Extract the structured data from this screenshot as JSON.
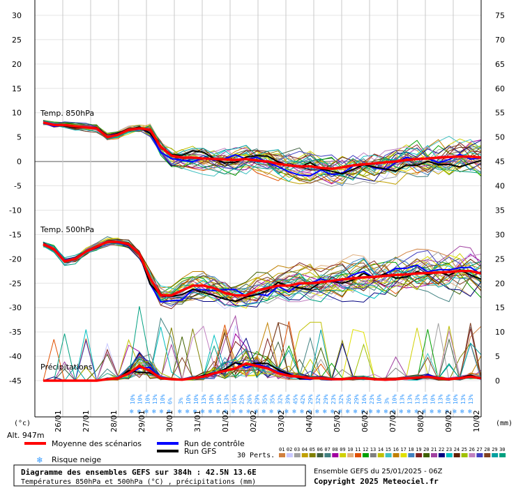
{
  "chart_data": {
    "type": "line",
    "title": "Diagramme des ensembles GEFS sur 384h : 42.5N 13.6E",
    "subtitle": "Températures 850hPa et 500hPa (°C) , précipitations (mm)",
    "xlabel": "",
    "left_axis": {
      "label": "(°c)",
      "ylim": [
        -45,
        30
      ],
      "ticks": [
        30,
        25,
        20,
        15,
        10,
        5,
        0,
        -5,
        -10,
        -15,
        -20,
        -25,
        -30,
        -35,
        -40,
        -45
      ]
    },
    "right_axis": {
      "label": "(mm)",
      "ylim": [
        0,
        75
      ],
      "ticks": [
        75,
        70,
        65,
        60,
        55,
        50,
        45,
        40,
        35,
        30,
        25,
        20,
        15,
        10,
        5,
        0
      ]
    },
    "dates": [
      "26/01",
      "27/01",
      "28/01",
      "29/01",
      "30/01",
      "31/01",
      "01/02",
      "02/02",
      "03/02",
      "04/02",
      "05/02",
      "06/02",
      "07/02",
      "08/02",
      "09/02",
      "10/02"
    ],
    "altitude_label": "Alt. 947m",
    "panel_labels": {
      "t850": "Temp. 850hPa",
      "t500": "Temp. 500hPa",
      "precip": "Précipitations"
    },
    "series": [
      {
        "name": "Moyenne des scénarios",
        "color": "#ff0000",
        "axis": "left",
        "values_t850": [
          8,
          7.5,
          7.5,
          7.2,
          7,
          6.8,
          5,
          5.5,
          6.5,
          6.8,
          6.5,
          3,
          1.2,
          0.8,
          0.8,
          0.6,
          0.5,
          0.4,
          0.3,
          0.5,
          0.2,
          0,
          -0.5,
          -0.8,
          -1,
          -1,
          -1.3,
          -1.5,
          -1.2,
          -0.8,
          -0.6,
          -0.4,
          -0.2,
          0,
          0.3,
          0.5,
          0.6,
          0.8,
          0.9,
          1,
          1,
          0.8
        ]
      },
      {
        "name": "Run de contrôle",
        "color": "#0000ff"
      },
      {
        "name": "Run GFS",
        "color": "#000000"
      }
    ],
    "mean_t500": [
      -17,
      -18,
      -20.5,
      -20,
      -18.5,
      -17.5,
      -16.5,
      -16.5,
      -17,
      -19,
      -24,
      -27.5,
      -27.5,
      -26.5,
      -25.5,
      -25.5,
      -26,
      -27,
      -27.5,
      -27.5,
      -26.5,
      -26,
      -25.5,
      -25.5,
      -25,
      -25,
      -24.8,
      -24.5,
      -24.2,
      -24,
      -23.8,
      -23.7,
      -23.5,
      -23.3,
      -23.2,
      -23,
      -22.9,
      -22.8,
      -22.7,
      -22.5,
      -22.5,
      -23
    ],
    "mean_precip_mm": [
      0,
      0,
      0,
      0,
      0,
      0,
      0.3,
      0.5,
      1.5,
      3,
      2,
      0.5,
      0.3,
      0.2,
      0.5,
      0.8,
      1.5,
      2,
      2.5,
      3.5,
      3,
      2.5,
      1.5,
      1,
      0.8,
      0.5,
      0.5,
      0.3,
      0.3,
      0.5,
      0.5,
      0.3,
      0.2,
      0.3,
      0.5,
      0.6,
      0.8,
      0.5,
      0.3,
      0.5,
      0.8,
      0.5
    ],
    "snow_risk_row1": [
      "10%",
      "10%",
      "10%",
      "13%",
      "10%",
      "6%"
    ],
    "snow_risk_row2": [
      "3%",
      "10%",
      "10%",
      "13%",
      "10%",
      "10%",
      "13%",
      "16%",
      "23%",
      "26%",
      "29%",
      "35%",
      "35%",
      "32%",
      "39%",
      "45%",
      "42%",
      "29%",
      "32%",
      "29%",
      "23%",
      "32%",
      "26%",
      "29%",
      "16%",
      "23%",
      "10%",
      "3%",
      "10%",
      "13%",
      "13%",
      "13%",
      "13%",
      "10%",
      "13%",
      "10%",
      "10%",
      "13%",
      "13%"
    ],
    "legend": {
      "mean": "Moyenne des scénarios",
      "control": "Run de contrôle",
      "gfs": "Run GFS",
      "snow": "Risque neige",
      "perts_label": "30 Perts.",
      "pert_numbers": [
        "01",
        "02",
        "03",
        "04",
        "05",
        "06",
        "07",
        "08",
        "09",
        "10",
        "11",
        "12",
        "13",
        "14",
        "15",
        "16",
        "17",
        "18",
        "19",
        "20",
        "21",
        "22",
        "23",
        "24",
        "25",
        "26",
        "27",
        "28",
        "29",
        "30"
      ],
      "pert_colors": [
        "#d08040",
        "#c8c8ff",
        "#a0a0a0",
        "#c0a000",
        "#808000",
        "#406040",
        "#408080",
        "#a000a0",
        "#d0d000",
        "#e0b080",
        "#e05000",
        "#00a000",
        "#808080",
        "#c0c000",
        "#40c0c0",
        "#c08000",
        "#e0e000",
        "#4080c0",
        "#802020",
        "#406000",
        "#a040a0",
        "#000080",
        "#00c0c0",
        "#602000",
        "#a0c000",
        "#c080c0",
        "#4040c0",
        "#804020",
        "#00a0a0",
        "#00a080"
      ]
    },
    "footer": {
      "run_info": "Ensemble GEFS du 25/01/2025 - 06Z",
      "copyright": "Copyright 2025 Meteociel.fr"
    }
  }
}
